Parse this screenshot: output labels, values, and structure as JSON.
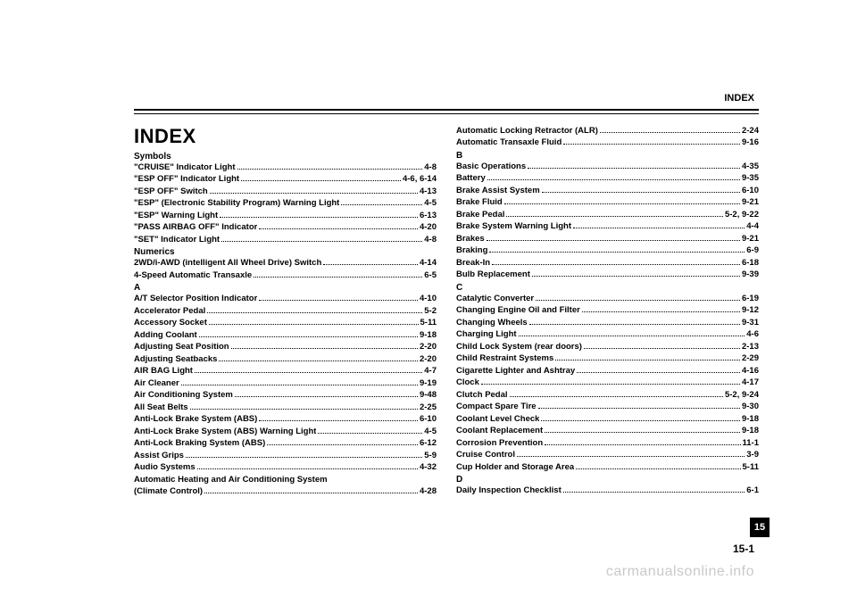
{
  "header": {
    "label": "INDEX"
  },
  "title": "INDEX",
  "tab": "15",
  "page_number": "15-1",
  "watermark": "carmanualsonline.info",
  "column1": {
    "sections": [
      {
        "heading": "Symbols",
        "entries": [
          {
            "label": "\"CRUISE\" Indicator Light",
            "pages": "4-8"
          },
          {
            "label": "\"ESP OFF\" Indicator Light",
            "pages": "4-6, 6-14"
          },
          {
            "label": "\"ESP OFF\" Switch",
            "pages": "4-13"
          },
          {
            "label": "\"ESP\" (Electronic Stability Program) Warning Light",
            "pages": "4-5"
          },
          {
            "label": "\"ESP\" Warning Light",
            "pages": "6-13"
          },
          {
            "label": "\"PASS AIRBAG OFF\" Indicator",
            "pages": "4-20"
          },
          {
            "label": "\"SET\" Indicator Light",
            "pages": "4-8"
          }
        ]
      },
      {
        "heading": "Numerics",
        "entries": [
          {
            "label": "2WD/i-AWD (intelligent All Wheel Drive) Switch",
            "pages": "4-14"
          },
          {
            "label": "4-Speed Automatic Transaxle",
            "pages": "6-5"
          }
        ]
      },
      {
        "heading": "A",
        "entries": [
          {
            "label": "A/T Selector Position Indicator",
            "pages": "4-10"
          },
          {
            "label": "Accelerator Pedal",
            "pages": "5-2"
          },
          {
            "label": "Accessory Socket",
            "pages": "5-11"
          },
          {
            "label": "Adding Coolant",
            "pages": "9-18"
          },
          {
            "label": "Adjusting Seat Position",
            "pages": "2-20"
          },
          {
            "label": "Adjusting Seatbacks",
            "pages": "2-20"
          },
          {
            "label": "AIR BAG Light",
            "pages": "4-7"
          },
          {
            "label": "Air Cleaner",
            "pages": "9-19"
          },
          {
            "label": "Air Conditioning System",
            "pages": "9-48"
          },
          {
            "label": "All Seat Belts",
            "pages": "2-25"
          },
          {
            "label": "Anti-Lock Brake System (ABS)",
            "pages": "6-10"
          },
          {
            "label": "Anti-Lock Brake System (ABS) Warning Light",
            "pages": "4-5"
          },
          {
            "label": "Anti-Lock Braking System (ABS)",
            "pages": "6-12"
          },
          {
            "label": "Assist Grips",
            "pages": "5-9"
          },
          {
            "label": "Audio Systems",
            "pages": "4-32"
          },
          {
            "label": "Automatic Heating and Air Conditioning System (Climate Control)",
            "pages": "4-28",
            "two_line": true
          }
        ]
      }
    ]
  },
  "column2": {
    "sections": [
      {
        "heading": null,
        "entries": [
          {
            "label": "Automatic Locking Retractor (ALR)",
            "pages": "2-24"
          },
          {
            "label": "Automatic Transaxle Fluid",
            "pages": "9-16"
          }
        ]
      },
      {
        "heading": "B",
        "entries": [
          {
            "label": "Basic Operations",
            "pages": "4-35"
          },
          {
            "label": "Battery",
            "pages": "9-35"
          },
          {
            "label": "Brake Assist System",
            "pages": "6-10"
          },
          {
            "label": "Brake Fluid",
            "pages": "9-21"
          },
          {
            "label": "Brake Pedal",
            "pages": "5-2, 9-22"
          },
          {
            "label": "Brake System Warning Light",
            "pages": "4-4"
          },
          {
            "label": "Brakes",
            "pages": "9-21"
          },
          {
            "label": "Braking",
            "pages": "6-9"
          },
          {
            "label": "Break-In",
            "pages": "6-18"
          },
          {
            "label": "Bulb Replacement",
            "pages": "9-39"
          }
        ]
      },
      {
        "heading": "C",
        "entries": [
          {
            "label": "Catalytic Converter",
            "pages": "6-19"
          },
          {
            "label": "Changing Engine Oil and Filter",
            "pages": "9-12"
          },
          {
            "label": "Changing Wheels",
            "pages": "9-31"
          },
          {
            "label": "Charging Light",
            "pages": "4-6"
          },
          {
            "label": "Child Lock System (rear doors)",
            "pages": "2-13"
          },
          {
            "label": "Child Restraint Systems",
            "pages": "2-29"
          },
          {
            "label": "Cigarette Lighter and Ashtray",
            "pages": "4-16"
          },
          {
            "label": "Clock",
            "pages": "4-17"
          },
          {
            "label": "Clutch Pedal",
            "pages": "5-2, 9-24"
          },
          {
            "label": "Compact Spare Tire",
            "pages": "9-30"
          },
          {
            "label": "Coolant Level Check",
            "pages": "9-18"
          },
          {
            "label": "Coolant Replacement",
            "pages": "9-18"
          },
          {
            "label": "Corrosion Prevention",
            "pages": "11-1"
          },
          {
            "label": "Cruise Control",
            "pages": "3-9"
          },
          {
            "label": "Cup Holder and Storage Area",
            "pages": "5-11"
          }
        ]
      },
      {
        "heading": "D",
        "entries": [
          {
            "label": "Daily Inspection Checklist",
            "pages": "6-1"
          }
        ]
      }
    ]
  }
}
